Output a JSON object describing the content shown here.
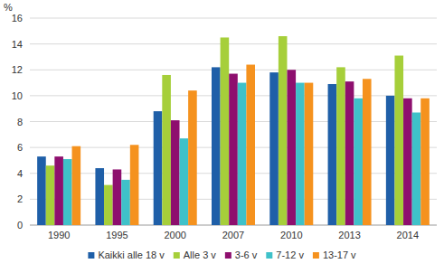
{
  "chart_data": {
    "type": "bar",
    "y_label": "%",
    "categories": [
      "1990",
      "1995",
      "2000",
      "2007",
      "2010",
      "2013",
      "2014"
    ],
    "series": [
      {
        "name": "Kaikki alle 18 v",
        "color": "#1f5fa8",
        "values": [
          5.3,
          4.4,
          8.8,
          12.2,
          11.8,
          10.9,
          10.0
        ]
      },
      {
        "name": "Alle 3 v",
        "color": "#a6cf3a",
        "values": [
          4.6,
          3.1,
          11.6,
          14.5,
          14.6,
          12.2,
          13.1
        ]
      },
      {
        "name": "3-6 v",
        "color": "#8e0f6e",
        "values": [
          5.3,
          4.3,
          8.1,
          11.7,
          12.0,
          11.1,
          9.8
        ]
      },
      {
        "name": "7-12 v",
        "color": "#3fc1c9",
        "values": [
          5.1,
          3.5,
          6.7,
          11.0,
          11.0,
          9.8,
          8.7
        ]
      },
      {
        "name": "13-17 v",
        "color": "#f5921e",
        "values": [
          6.1,
          6.2,
          10.4,
          12.4,
          11.0,
          11.3,
          9.8
        ]
      }
    ],
    "ylim": [
      0,
      16
    ],
    "yticks": [
      0,
      2,
      4,
      6,
      8,
      10,
      12,
      14,
      16
    ],
    "grid": true,
    "legend": "bottom"
  }
}
